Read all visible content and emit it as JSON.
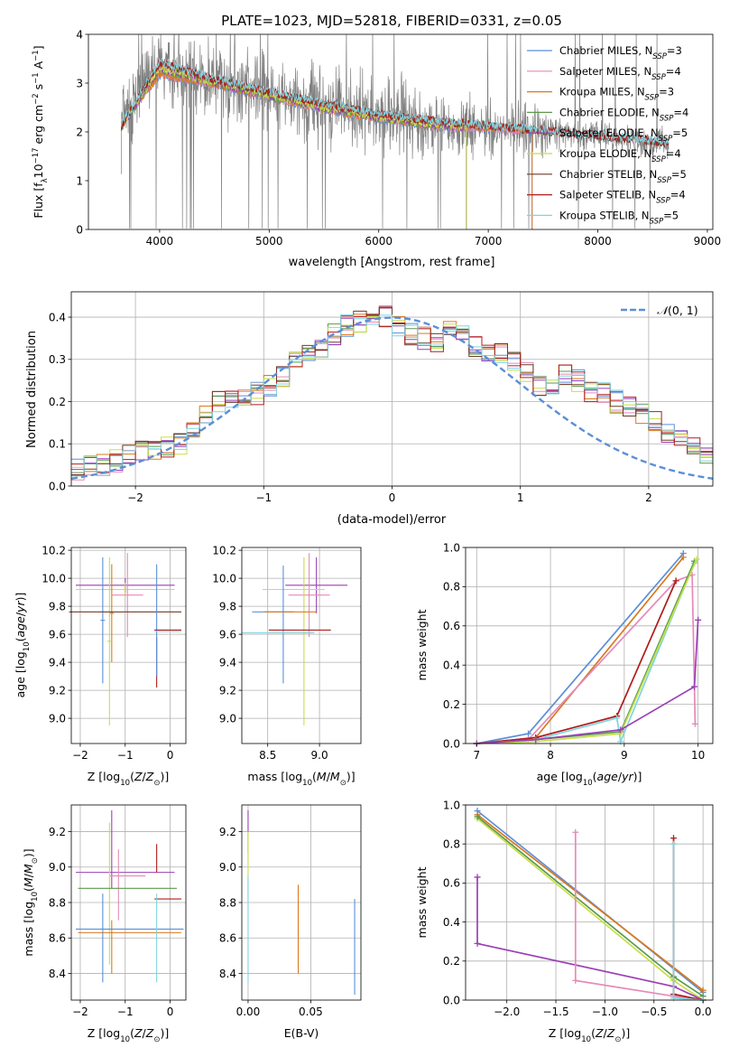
{
  "colors": {
    "Chabrier MILES": "#5b8fd9",
    "Salpeter MILES": "#e58ab9",
    "Kroupa MILES": "#d97a1e",
    "Chabrier ELODIE": "#5a9a4a",
    "Salpeter ELODIE": "#9b3fb6",
    "Kroupa ELODIE": "#c8de4b",
    "Chabrier STELIB": "#6b3a2a",
    "Salpeter STELIB": "#b01c1c",
    "Kroupa STELIB": "#7fd5df",
    "data": "#808080",
    "normal": "#5b8fd9"
  },
  "chart_data": [
    {
      "type": "line",
      "title": "PLATE=1023, MJD=52818, FIBERID=0331, z=0.05",
      "xlabel": "wavelength [Angstrom, rest frame]",
      "ylabel": "Flux [f_λ 10^-17 erg cm^-2 s^-1 A^-1]",
      "xlim": [
        3350,
        9050
      ],
      "ylim": [
        0,
        4
      ],
      "xticks": [
        4000,
        5000,
        6000,
        7000,
        8000,
        9000
      ],
      "yticks": [
        0,
        1,
        2,
        3,
        4
      ],
      "legend_position": "top-right",
      "legend": [
        "Chabrier MILES, N_SSP=3",
        "Salpeter MILES, N_SSP=4",
        "Kroupa MILES, N_SSP=3",
        "Chabrier ELODIE, N_SSP=4",
        "Salpeter ELODIE, N_SSP=5",
        "Kroupa ELODIE, N_SSP=4",
        "Chabrier STELIB, N_SSP=5",
        "Salpeter STELIB, N_SSP=4",
        "Kroupa STELIB, N_SSP=5"
      ],
      "data_range": [
        3650,
        8650
      ],
      "models": {
        "MILES": {
          "x": [
            3650,
            4000,
            4500,
            5000,
            5500,
            6000,
            6500,
            7000,
            7400
          ],
          "y": [
            2.2,
            3.2,
            3.0,
            2.75,
            2.5,
            2.3,
            2.15,
            2.1,
            2.05
          ]
        },
        "ELODIE": {
          "x": [
            3650,
            4000,
            4500,
            5000,
            5500,
            6000,
            6500,
            6800
          ],
          "y": [
            2.1,
            3.3,
            3.0,
            2.75,
            2.5,
            2.3,
            2.15,
            2.1
          ]
        },
        "STELIB": {
          "x": [
            3650,
            4000,
            4500,
            5000,
            5500,
            6000,
            6500,
            7000,
            7500,
            8000,
            8650
          ],
          "y": [
            2.1,
            3.4,
            3.05,
            2.8,
            2.55,
            2.35,
            2.2,
            2.1,
            2.0,
            1.9,
            1.75
          ]
        }
      }
    },
    {
      "type": "bar",
      "xlabel": "(data-model)/error",
      "ylabel": "Normed distribution",
      "xlim": [
        -2.5,
        2.5
      ],
      "ylim": [
        0,
        0.46
      ],
      "xticks": [
        -2,
        -1,
        0,
        1,
        2
      ],
      "yticks": [
        0.0,
        0.1,
        0.2,
        0.3,
        0.4
      ],
      "legend": [
        "𝒩(0,1)"
      ],
      "legend_position": "top-right",
      "bin_width": 0.1,
      "hist_base": [
        0.04,
        0.05,
        0.05,
        0.06,
        0.07,
        0.08,
        0.09,
        0.09,
        0.1,
        0.13,
        0.17,
        0.2,
        0.21,
        0.21,
        0.22,
        0.24,
        0.26,
        0.29,
        0.31,
        0.33,
        0.36,
        0.38,
        0.39,
        0.41,
        0.4,
        0.38,
        0.36,
        0.35,
        0.34,
        0.37,
        0.37,
        0.33,
        0.32,
        0.31,
        0.3,
        0.27,
        0.24,
        0.24,
        0.26,
        0.25,
        0.22,
        0.22,
        0.2,
        0.19,
        0.17,
        0.15,
        0.13,
        0.11,
        0.09,
        0.08,
        0.07
      ]
    },
    {
      "type": "scatter",
      "xlabel": "Z [log10(Z/Z☉)]",
      "ylabel": "age  [log10(age/yr)]",
      "xlim": [
        -2.2,
        0.35
      ],
      "ylim": [
        8.82,
        10.22
      ],
      "xticks": [
        -2,
        -1,
        0
      ],
      "yticks": [
        9.0,
        9.2,
        9.4,
        9.6,
        9.8,
        10.0,
        10.2
      ],
      "crosses": [
        {
          "model": "Salpeter ELODIE",
          "x": -1.0,
          "y": 9.95,
          "xerr": 1.1,
          "yerr": 0.05
        },
        {
          "model": "Kroupa ELODIE",
          "x": -1.0,
          "y": 9.92,
          "xerr": 1.1,
          "yerr": 0.05
        },
        {
          "model": "Salpeter MILES",
          "x": -0.95,
          "y": 9.88,
          "xerr": 0.35,
          "yerr": 0.3
        },
        {
          "model": "Kroupa MILES",
          "x": -1.3,
          "y": 9.75,
          "xerr": 0.05,
          "yerr": 0.35
        },
        {
          "model": "Kroupa ELODIE",
          "x": -1.35,
          "y": 9.55,
          "xerr": 0.05,
          "yerr": 0.6
        },
        {
          "model": "Chabrier MILES",
          "x": -1.5,
          "y": 9.7,
          "xerr": 0.05,
          "yerr": 0.45
        },
        {
          "model": "Chabrier STELIB",
          "x": -1.0,
          "y": 9.76,
          "xerr": 1.25,
          "yerr": 0.0
        },
        {
          "model": "Salpeter STELIB",
          "x": -0.3,
          "y": 9.4,
          "xerr": 0.0,
          "yerr": 0.18
        },
        {
          "model": "Chabrier MILES",
          "x": -0.3,
          "y": 9.7,
          "xerr": 0.0,
          "yerr": 0.4
        },
        {
          "model": "Kroupa STELIB",
          "x": -0.05,
          "y": 9.62,
          "xerr": 0.3,
          "yerr": 0.0
        },
        {
          "model": "Salpeter STELIB",
          "x": -0.05,
          "y": 9.63,
          "xerr": 0.3,
          "yerr": 0.0
        }
      ]
    },
    {
      "type": "scatter",
      "xlabel": "mass [log10(M/M☉)]",
      "ylabel": "",
      "xlim": [
        8.25,
        9.4
      ],
      "ylim": [
        8.82,
        10.22
      ],
      "xticks": [
        8.5,
        9.0
      ],
      "yticks": [
        9.0,
        9.2,
        9.4,
        9.6,
        9.8,
        10.0,
        10.2
      ],
      "crosses": [
        {
          "model": "Salpeter ELODIE",
          "x": 8.97,
          "y": 9.95,
          "xerr": 0.3,
          "yerr": 0.2
        },
        {
          "model": "Salpeter MILES",
          "x": 8.9,
          "y": 9.88,
          "xerr": 0.2,
          "yerr": 0.3
        },
        {
          "model": "Kroupa ELODIE",
          "x": 8.75,
          "y": 9.92,
          "xerr": 0.3,
          "yerr": 0.0
        },
        {
          "model": "Kroupa ELODIE",
          "x": 8.85,
          "y": 9.55,
          "xerr": 0.0,
          "yerr": 0.6
        },
        {
          "model": "Chabrier MILES",
          "x": 8.55,
          "y": 9.76,
          "xerr": 0.2,
          "yerr": 0.0
        },
        {
          "model": "Kroupa MILES",
          "x": 8.72,
          "y": 9.76,
          "xerr": 0.25,
          "yerr": 0.0
        },
        {
          "model": "Chabrier MILES",
          "x": 8.65,
          "y": 9.67,
          "xerr": 0.0,
          "yerr": 0.42
        },
        {
          "model": "Salpeter STELIB",
          "x": 8.81,
          "y": 9.63,
          "xerr": 0.3,
          "yerr": 0.0
        },
        {
          "model": "Kroupa STELIB",
          "x": 8.6,
          "y": 9.61,
          "xerr": 0.35,
          "yerr": 0.0
        }
      ]
    },
    {
      "type": "line",
      "xlabel": "age  [log10(age/yr)]",
      "ylabel": "mass weight",
      "xlim": [
        6.85,
        10.2
      ],
      "ylim": [
        0,
        1
      ],
      "xticks": [
        7,
        8,
        9,
        10
      ],
      "yticks": [
        0.0,
        0.2,
        0.4,
        0.6,
        0.8,
        1.0
      ],
      "series": [
        {
          "model": "Chabrier MILES",
          "x": [
            7.0,
            7.7,
            9.8
          ],
          "y": [
            0.0,
            0.05,
            0.97
          ]
        },
        {
          "model": "Kroupa MILES",
          "x": [
            7.0,
            7.8,
            9.8
          ],
          "y": [
            0.0,
            0.03,
            0.95
          ]
        },
        {
          "model": "Salpeter MILES",
          "x": [
            7.0,
            7.7,
            9.7,
            9.92,
            9.96
          ],
          "y": [
            0.0,
            0.02,
            0.83,
            0.86,
            0.1
          ]
        },
        {
          "model": "Salpeter STELIB",
          "x": [
            7.0,
            7.8,
            8.9,
            9.7
          ],
          "y": [
            0.0,
            0.03,
            0.14,
            0.83
          ]
        },
        {
          "model": "Kroupa STELIB",
          "x": [
            7.0,
            7.8,
            8.9,
            8.95,
            9.95
          ],
          "y": [
            0.0,
            0.02,
            0.13,
            0.01,
            0.92
          ]
        },
        {
          "model": "Chabrier ELODIE",
          "x": [
            7.0,
            7.8,
            8.95,
            9.95
          ],
          "y": [
            0.0,
            0.02,
            0.06,
            0.93
          ]
        },
        {
          "model": "Kroupa ELODIE",
          "x": [
            7.0,
            7.8,
            8.95,
            9.98
          ],
          "y": [
            0.0,
            0.01,
            0.05,
            0.94
          ]
        },
        {
          "model": "Salpeter ELODIE",
          "x": [
            7.0,
            7.8,
            8.95,
            9.95,
            10.0
          ],
          "y": [
            0.0,
            0.02,
            0.07,
            0.29,
            0.63
          ]
        }
      ]
    },
    {
      "type": "scatter",
      "xlabel": "Z [log10(Z/Z☉)]",
      "ylabel": "mass [log10(M/M☉)]",
      "xlim": [
        -2.2,
        0.35
      ],
      "ylim": [
        8.25,
        9.35
      ],
      "xticks": [
        -2,
        -1,
        0
      ],
      "yticks": [
        8.4,
        8.6,
        8.8,
        9.0,
        9.2
      ],
      "crosses": [
        {
          "model": "Salpeter ELODIE",
          "x": -1.0,
          "y": 8.97,
          "xerr": 1.1,
          "yerr": 0.0
        },
        {
          "model": "Salpeter ELODIE",
          "x": -1.3,
          "y": 9.1,
          "xerr": 0.0,
          "yerr": 0.22
        },
        {
          "model": "Salpeter MILES",
          "x": -0.95,
          "y": 8.95,
          "xerr": 0.4,
          "yerr": 0.0
        },
        {
          "model": "Salpeter MILES",
          "x": -1.15,
          "y": 8.9,
          "xerr": 0.0,
          "yerr": 0.2
        },
        {
          "model": "Kroupa ELODIE",
          "x": -1.35,
          "y": 8.85,
          "xerr": 0.0,
          "yerr": 0.4
        },
        {
          "model": "Chabrier ELODIE",
          "x": -0.95,
          "y": 8.88,
          "xerr": 1.1,
          "yerr": 0.0
        },
        {
          "model": "Chabrier MILES",
          "x": -1.5,
          "y": 8.6,
          "xerr": 0.0,
          "yerr": 0.25
        },
        {
          "model": "Kroupa MILES",
          "x": -1.3,
          "y": 8.55,
          "xerr": 0.0,
          "yerr": 0.15
        },
        {
          "model": "Chabrier MILES",
          "x": -0.9,
          "y": 8.65,
          "xerr": 1.2,
          "yerr": 0.0
        },
        {
          "model": "Kroupa MILES",
          "x": -0.9,
          "y": 8.63,
          "xerr": 1.15,
          "yerr": 0.0
        },
        {
          "model": "Salpeter STELIB",
          "x": -0.05,
          "y": 8.82,
          "xerr": 0.3,
          "yerr": 0.0
        },
        {
          "model": "Salpeter STELIB",
          "x": -0.3,
          "y": 9.05,
          "xerr": 0.0,
          "yerr": 0.08
        },
        {
          "model": "Kroupa STELIB",
          "x": -0.3,
          "y": 8.6,
          "xerr": 0.0,
          "yerr": 0.25
        }
      ]
    },
    {
      "type": "scatter",
      "xlabel": "E(B-V)",
      "ylabel": "",
      "xlim": [
        -0.005,
        0.09
      ],
      "ylim": [
        8.25,
        9.35
      ],
      "xticks": [
        0.0,
        0.05
      ],
      "yticks": [
        8.4,
        8.6,
        8.8,
        9.0,
        9.2
      ],
      "crosses": [
        {
          "model": "Salpeter ELODIE",
          "x": 0.0,
          "y": 9.2,
          "xerr": 0.0,
          "yerr": 0.12
        },
        {
          "model": "Kroupa ELODIE",
          "x": 0.0,
          "y": 9.0,
          "xerr": 0.0,
          "yerr": 0.2
        },
        {
          "model": "Kroupa STELIB",
          "x": 0.0,
          "y": 8.65,
          "xerr": 0.0,
          "yerr": 0.3
        },
        {
          "model": "Kroupa MILES",
          "x": 0.04,
          "y": 8.65,
          "xerr": 0.0,
          "yerr": 0.25
        },
        {
          "model": "Chabrier MILES",
          "x": 0.085,
          "y": 8.55,
          "xerr": 0.0,
          "yerr": 0.27
        }
      ]
    },
    {
      "type": "line",
      "xlabel": "Z [log10(Z/Z☉)]",
      "ylabel": "mass weight",
      "xlim": [
        -2.42,
        0.1
      ],
      "ylim": [
        0,
        1
      ],
      "xticks": [
        -2.0,
        -1.5,
        -1.0,
        -0.5,
        0.0
      ],
      "yticks": [
        0.0,
        0.2,
        0.4,
        0.6,
        0.8,
        1.0
      ],
      "series": [
        {
          "model": "Chabrier MILES",
          "x": [
            -2.3,
            0.0
          ],
          "y": [
            0.97,
            0.04
          ]
        },
        {
          "model": "Kroupa MILES",
          "x": [
            -2.3,
            0.0
          ],
          "y": [
            0.95,
            0.05
          ]
        },
        {
          "model": "Kroupa ELODIE",
          "x": [
            -2.3,
            -0.3,
            0.0
          ],
          "y": [
            0.93,
            0.1,
            0.0
          ]
        },
        {
          "model": "Chabrier ELODIE",
          "x": [
            -2.3,
            -0.3,
            0.0
          ],
          "y": [
            0.94,
            0.12,
            0.02
          ]
        },
        {
          "model": "Salpeter ELODIE",
          "x": [
            -2.3,
            -2.3,
            -0.3,
            0.0
          ],
          "y": [
            0.63,
            0.29,
            0.07,
            0.0
          ]
        },
        {
          "model": "Salpeter MILES",
          "x": [
            -1.3,
            -1.3,
            -0.3,
            0.0
          ],
          "y": [
            0.86,
            0.1,
            0.02,
            0.0
          ]
        },
        {
          "model": "Salpeter STELIB",
          "x": [
            -0.3,
            -0.3,
            0.0
          ],
          "y": [
            0.83,
            0.03,
            0.0
          ]
        },
        {
          "model": "Kroupa STELIB",
          "x": [
            -0.3,
            -0.3,
            0.0
          ],
          "y": [
            0.8,
            0.01,
            0.0
          ]
        }
      ]
    }
  ]
}
